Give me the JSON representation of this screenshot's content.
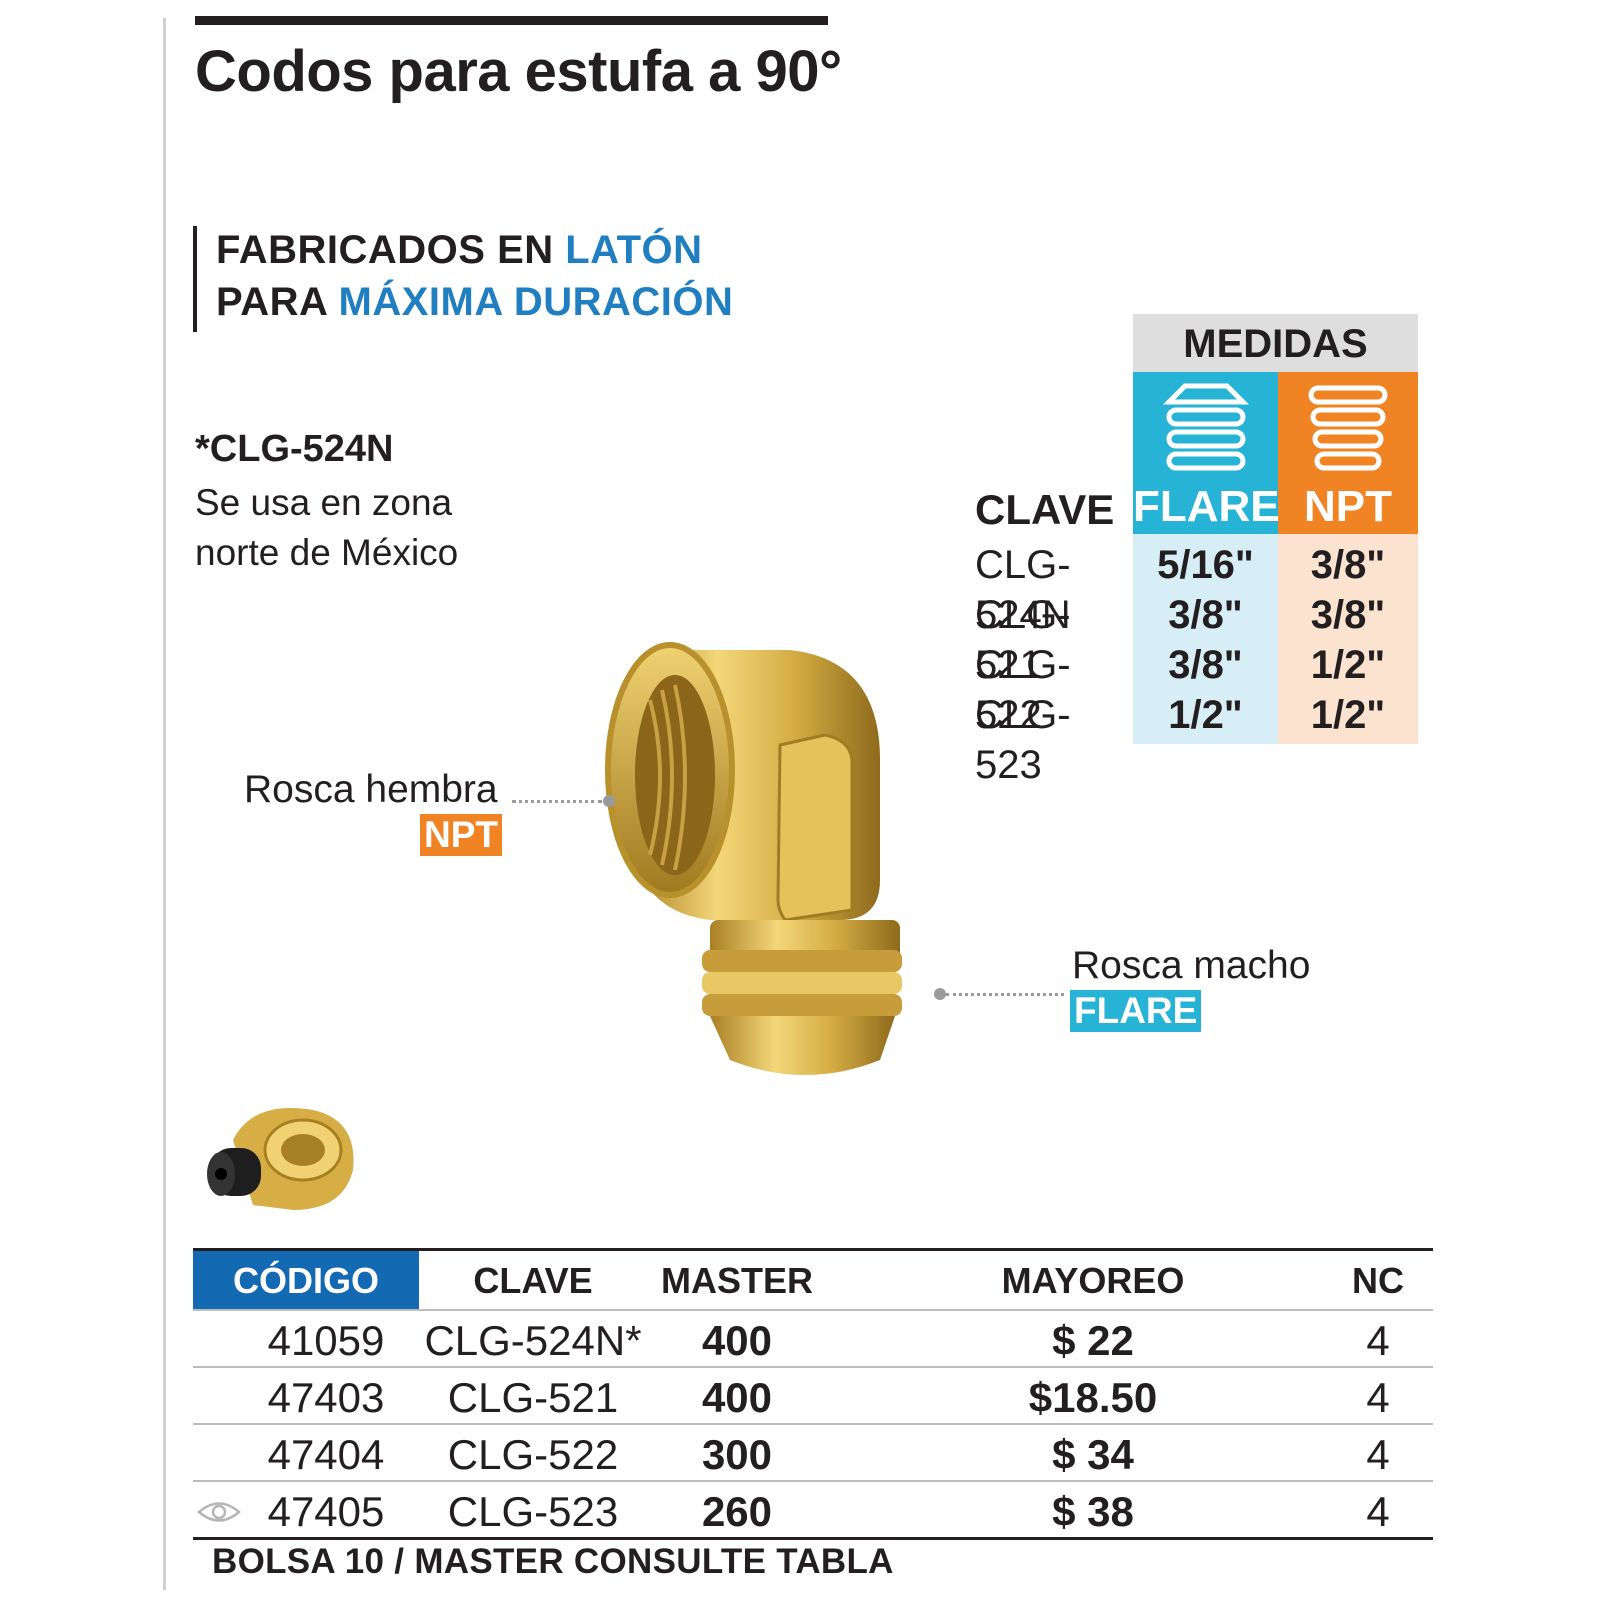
{
  "header": {
    "title": "Codos para estufa a 90°"
  },
  "tagline": {
    "line1_prefix": "FABRICADOS EN ",
    "line1_highlight": "LATÓN",
    "line2_prefix": "PARA ",
    "line2_highlight": "MÁXIMA DURACIÓN"
  },
  "note": {
    "code": "*CLG-524N",
    "text": "Se usa en zona norte de México"
  },
  "medidas": {
    "title": "MEDIDAS",
    "clave_header": "CLAVE",
    "flare_header": "FLARE",
    "npt_header": "NPT",
    "rows": [
      {
        "clave": "CLG-524N",
        "flare": "5/16\"",
        "npt": "3/8\""
      },
      {
        "clave": "CLG-521",
        "flare": "3/8\"",
        "npt": "3/8\""
      },
      {
        "clave": "CLG-522",
        "flare": "3/8\"",
        "npt": "1/2\""
      },
      {
        "clave": "CLG-523",
        "flare": "1/2\"",
        "npt": "1/2\""
      }
    ]
  },
  "callouts": {
    "hembra": {
      "text": "Rosca hembra",
      "badge": "NPT"
    },
    "macho": {
      "text": "Rosca macho",
      "badge": "FLARE"
    }
  },
  "table": {
    "headers": {
      "codigo": "CÓDIGO",
      "clave": "CLAVE",
      "master": "MASTER",
      "mayoreo": "MAYOREO",
      "nc": "NC"
    },
    "rows": [
      {
        "codigo": "41059",
        "clave": "CLG-524N*",
        "master": "400",
        "mayoreo": "$ 22",
        "nc": "4"
      },
      {
        "codigo": "47403",
        "clave": "CLG-521",
        "master": "400",
        "mayoreo": "$18.50",
        "nc": "4"
      },
      {
        "codigo": "47404",
        "clave": "CLG-522",
        "master": "300",
        "mayoreo": "$ 34",
        "nc": "4"
      },
      {
        "codigo": "47405",
        "clave": "CLG-523",
        "master": "260",
        "mayoreo": "$ 38",
        "nc": "4"
      }
    ],
    "footnote": "BOLSA 10 / MASTER CONSULTE TABLA"
  },
  "colors": {
    "blue_accent": "#1f7fc0",
    "flare": "#27b3d6",
    "npt": "#f08424",
    "codigo_header": "#1469b3",
    "brass": "#d8b24a"
  },
  "icons": [
    "flare-thread-icon",
    "npt-thread-icon",
    "eye-icon"
  ]
}
